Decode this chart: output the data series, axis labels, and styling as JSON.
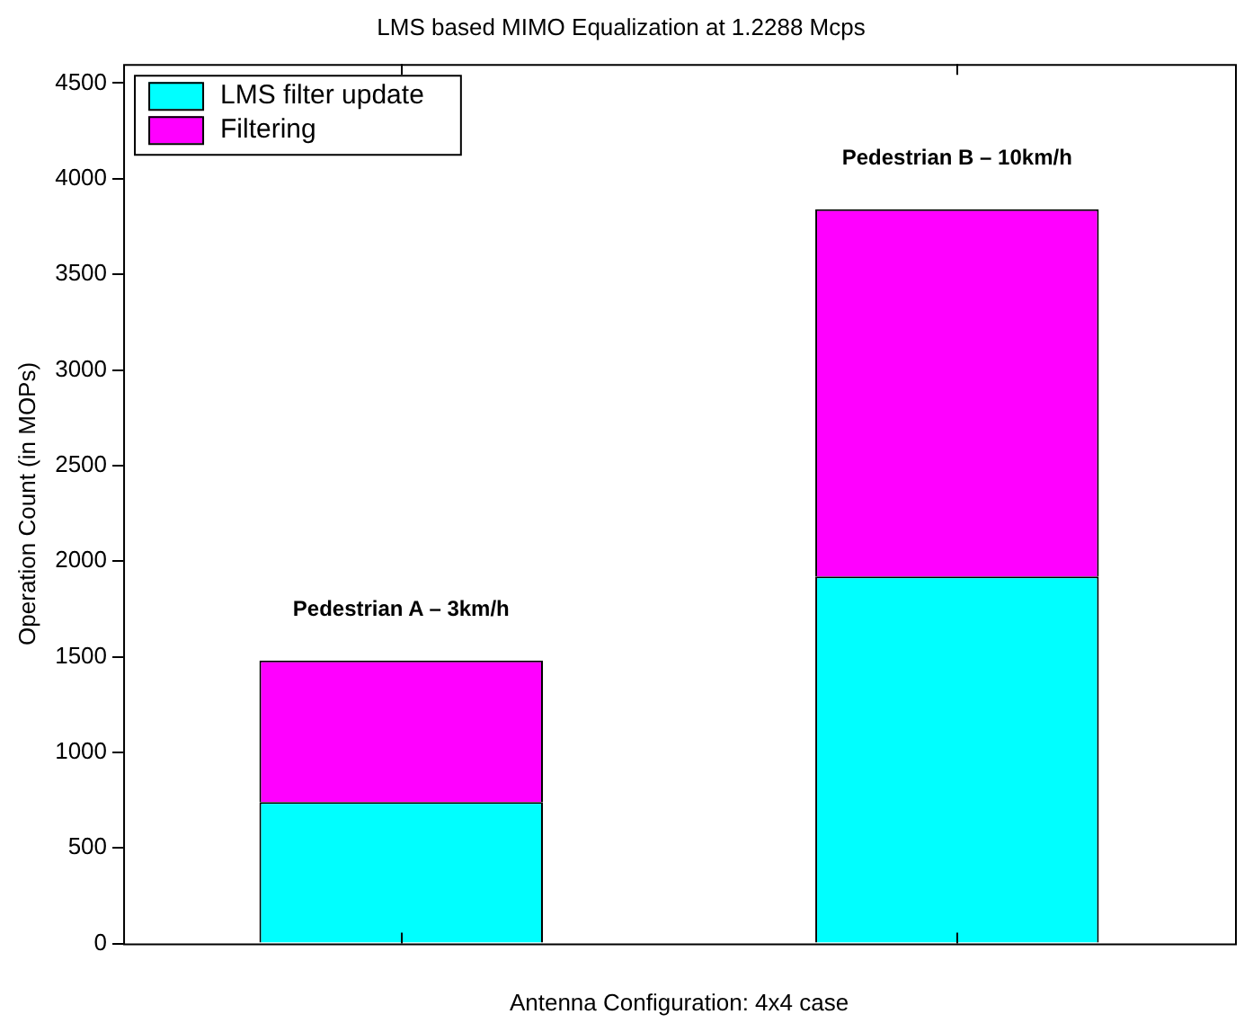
{
  "chart_data": {
    "type": "bar",
    "title": "LMS based MIMO Equalization at 1.2288 Mcps",
    "xlabel": "Antenna Configuration: 4x4 case",
    "ylabel": "Operation Count (in MOPs)",
    "categories": [
      null,
      null
    ],
    "series": [
      {
        "name": "LMS filter update",
        "color": "#00ffff",
        "values": [
          740,
          1920
        ]
      },
      {
        "name": "Filtering",
        "color": "#ff00ff",
        "values": [
          740,
          1920
        ]
      }
    ],
    "stacked": true,
    "ylim": [
      0,
      4600
    ],
    "yticks": [
      0,
      500,
      1000,
      1500,
      2000,
      2500,
      3000,
      3500,
      4000,
      4500
    ],
    "grid": false,
    "legend": "top left",
    "annotations": [
      "Pedestrian A – 3km/h",
      "Pedestrian B – 10km/h"
    ]
  }
}
